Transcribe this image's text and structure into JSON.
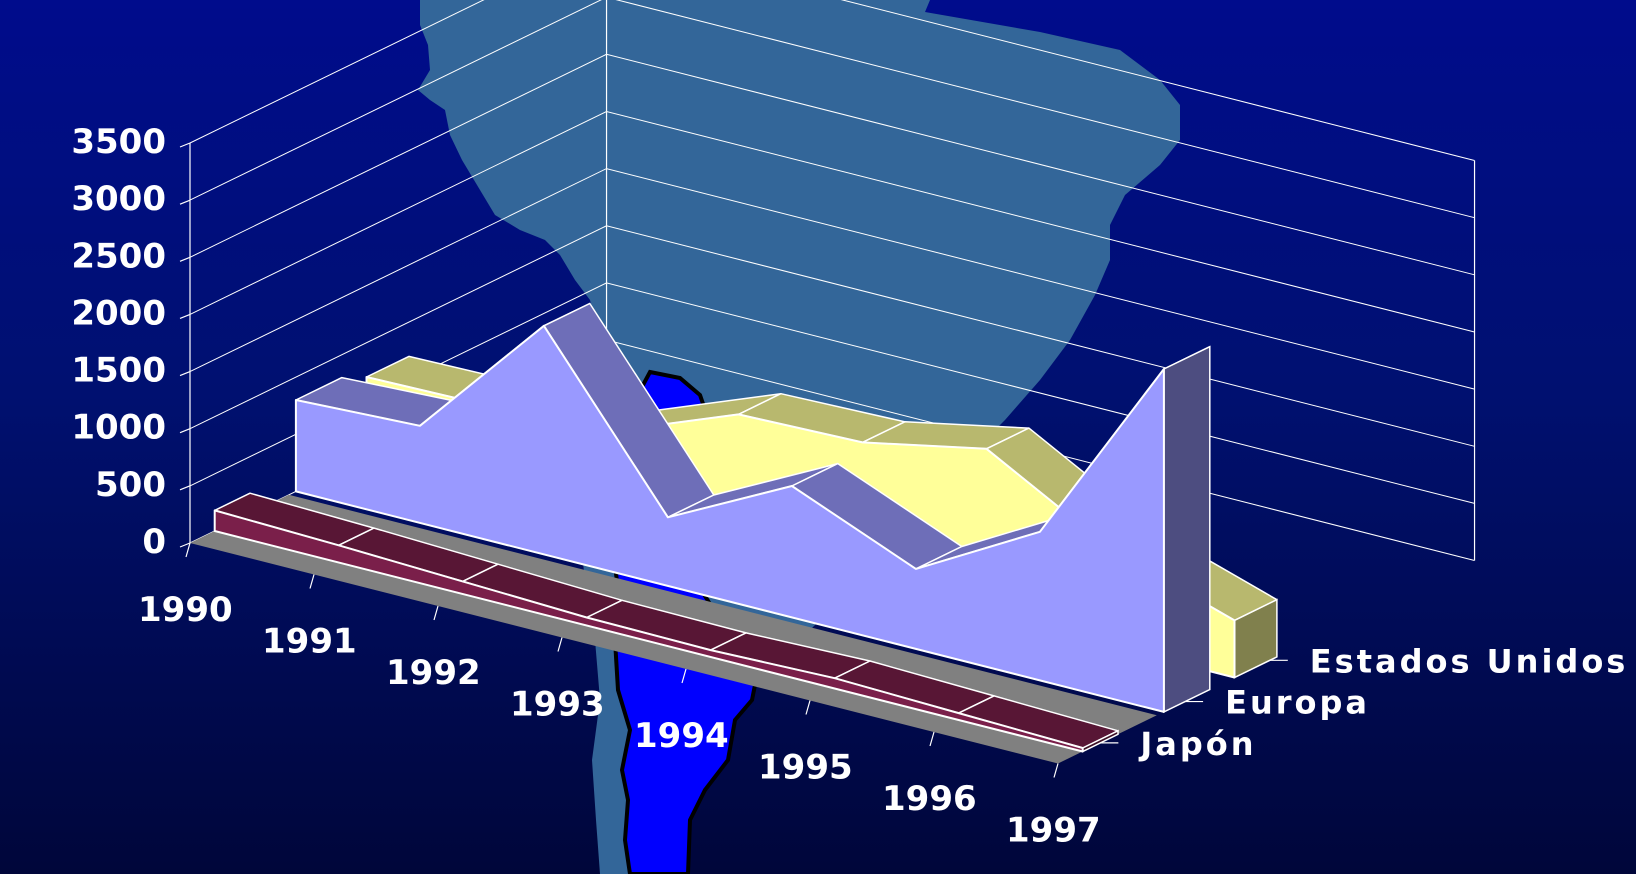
{
  "chart_data": {
    "type": "area",
    "style": "3d-stacked-depth",
    "x": [
      "1990",
      "1991",
      "1992",
      "1993",
      "1994",
      "1995",
      "1996",
      "1997"
    ],
    "series": [
      {
        "name": "Japón",
        "values": [
          180,
          150,
          110,
          70,
          60,
          90,
          60,
          30
        ],
        "color": "#7a1f4a"
      },
      {
        "name": "Europa",
        "values": [
          800,
          850,
          2000,
          600,
          1150,
          700,
          1300,
          3000
        ],
        "color": "#9999ff"
      },
      {
        "name": "Estados Unidos",
        "values": [
          700,
          720,
          780,
          1200,
          1230,
          1450,
          850,
          500
        ],
        "color": "#ffff99"
      }
    ],
    "y_ticks": [
      "0",
      "500",
      "1000",
      "1500",
      "2000",
      "2500",
      "3000",
      "3500"
    ],
    "ylim": [
      0,
      3500
    ],
    "grid": true,
    "legend": "depth-axis-labels",
    "colors": {
      "background_top": "#000c8c",
      "background_bottom": "#00063a",
      "gridline": "#ffffff",
      "floor": "#808080",
      "map_shape": "#336699",
      "map_highlight": "#0000ff"
    },
    "decoration_icon": "south-america-map-icon"
  }
}
